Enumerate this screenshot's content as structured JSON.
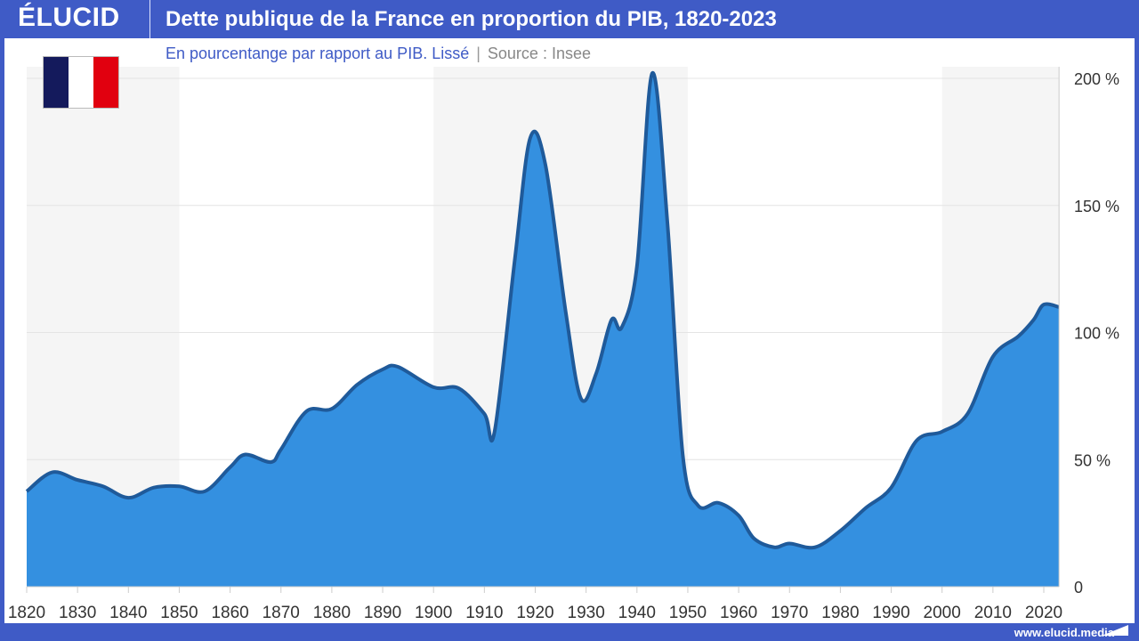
{
  "header": {
    "logo": "ÉLUCID",
    "title": "Dette publique de la France en proportion du PIB, 1820-2023"
  },
  "subtitle": {
    "text": "En pourcentange par rapport au PIB. Lissé",
    "separator": "|",
    "source": "Source : Insee"
  },
  "flag": {
    "colors": [
      "#141a5c",
      "#ffffff",
      "#e1000f"
    ]
  },
  "footer": {
    "url": "www.elucid.media"
  },
  "colors": {
    "brand": "#3f5bc6",
    "fill": "#3490e0",
    "line": "#1f5a9a",
    "band": "#f5f5f5"
  },
  "chart_data": {
    "type": "area",
    "title": "Dette publique de la France en proportion du PIB, 1820-2023",
    "xlim": [
      1820,
      2023
    ],
    "ylim": [
      0,
      200
    ],
    "x_ticks": [
      1820,
      1830,
      1840,
      1850,
      1860,
      1870,
      1880,
      1890,
      1900,
      1910,
      1920,
      1930,
      1940,
      1950,
      1960,
      1970,
      1980,
      1990,
      2000,
      2010,
      2020
    ],
    "y_ticks": [
      {
        "v": 0,
        "label": "0"
      },
      {
        "v": 50,
        "label": "50 %"
      },
      {
        "v": 100,
        "label": "100 %"
      },
      {
        "v": 150,
        "label": "150 %"
      },
      {
        "v": 200,
        "label": "200 %"
      }
    ],
    "y_axis_side": "right",
    "grid": "horizontal",
    "shaded_periods": [
      [
        1820,
        1850
      ],
      [
        1900,
        1950
      ],
      [
        2000,
        2023
      ]
    ],
    "x": [
      1820,
      1825,
      1830,
      1835,
      1840,
      1845,
      1850,
      1855,
      1860,
      1863,
      1868,
      1870,
      1875,
      1880,
      1885,
      1890,
      1893,
      1900,
      1905,
      1910,
      1912,
      1916,
      1919,
      1922,
      1926,
      1929,
      1932,
      1935,
      1937,
      1940,
      1943,
      1946,
      1949,
      1952,
      1956,
      1960,
      1963,
      1967,
      1970,
      1975,
      1980,
      1985,
      1990,
      1995,
      2000,
      2005,
      2010,
      2015,
      2018,
      2020,
      2023
    ],
    "y": [
      37.5,
      45,
      42,
      39.5,
      35,
      39,
      39.5,
      37.5,
      47,
      52,
      49,
      54,
      69,
      70,
      79.5,
      85.5,
      86.5,
      78.5,
      78,
      68,
      61,
      129,
      176.5,
      166,
      108,
      74,
      84,
      105,
      102,
      126,
      202,
      143,
      52,
      32,
      33,
      28,
      19,
      15.5,
      17,
      15.5,
      22,
      31,
      39,
      57.5,
      61,
      68,
      90.5,
      98.5,
      105,
      111,
      110
    ]
  }
}
